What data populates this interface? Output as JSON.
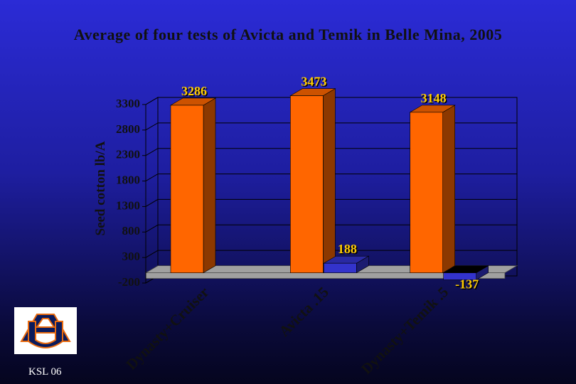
{
  "chart_data": {
    "type": "bar3d",
    "title": "Average of four tests of Avicta and Temik in Belle Mina, 2005",
    "y_label": "Seed cotton lb/A",
    "categories": [
      "Dynasty+Cruiser",
      "Avicta .15",
      "Dynasty+Temik .5"
    ],
    "series": [
      {
        "color": "#ff6600",
        "values": [
          3286,
          3473,
          3148
        ]
      },
      {
        "color": "#3333cc",
        "values": [
          null,
          188,
          -137
        ]
      }
    ],
    "ylim": [
      -200,
      3300
    ],
    "yticks": [
      -200,
      300,
      800,
      1300,
      1800,
      2300,
      2800,
      3300
    ],
    "grid": true,
    "label_color": "#ffcc00"
  },
  "footer": "KSL 06"
}
